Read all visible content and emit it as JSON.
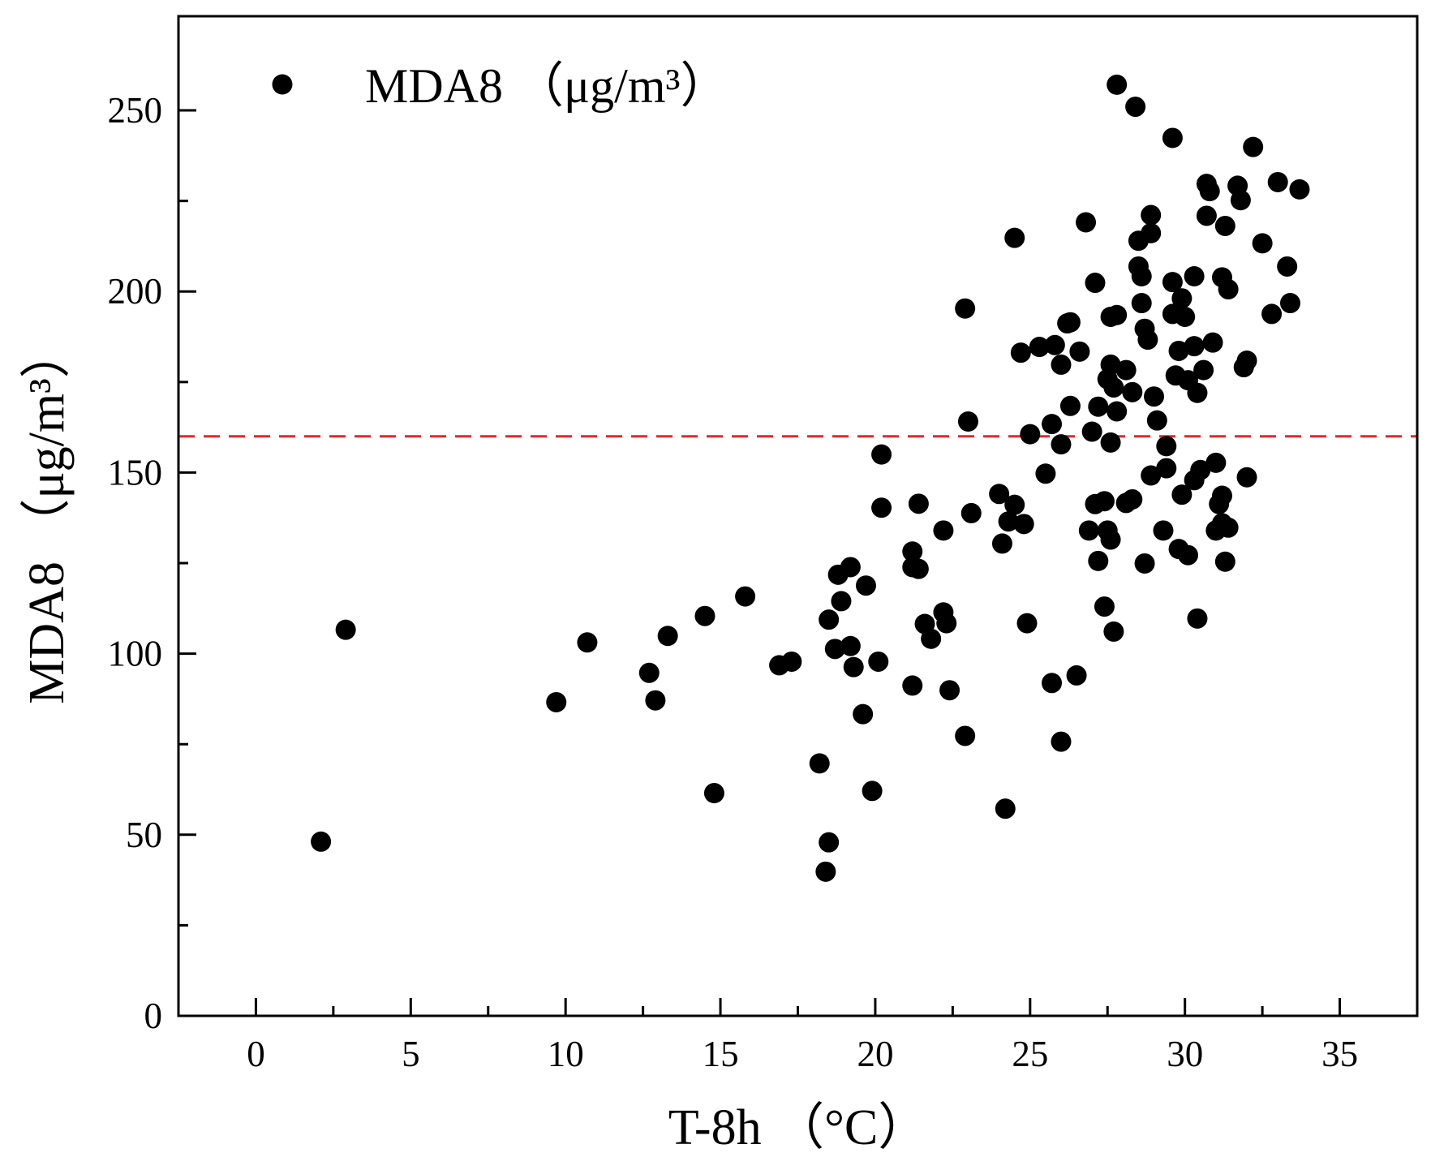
{
  "chart_data": {
    "type": "scatter",
    "x_label": "T-8h （°C）",
    "y_label": "MDA8 （μg/m³）",
    "xlim": [
      -2.5,
      37.5
    ],
    "ylim": [
      0,
      276
    ],
    "xticks": [
      0,
      5,
      10,
      15,
      20,
      25,
      30,
      35
    ],
    "yticks": [
      0,
      50,
      100,
      150,
      200,
      250
    ],
    "grid": false,
    "legend": "upper left",
    "hline": {
      "value": 160,
      "color": "#e8262a"
    },
    "series": [
      {
        "name": "MDA8 （μg/m³）",
        "color": "#000000",
        "x": [
          2.1,
          2.9,
          9.7,
          10.7,
          12.7,
          12.9,
          13.3,
          14.5,
          14.8,
          15.8,
          16.9,
          17.3,
          18.2,
          18.4,
          18.5,
          18.5,
          18.7,
          18.8,
          18.9,
          19.2,
          19.2,
          19.3,
          19.6,
          19.7,
          19.9,
          20.1,
          20.2,
          20.2,
          21.2,
          21.2,
          21.2,
          21.4,
          21.4,
          21.6,
          21.8,
          22.2,
          22.2,
          22.3,
          22.4,
          22.9,
          22.9,
          23.0,
          23.1,
          24.0,
          24.1,
          24.2,
          24.3,
          24.5,
          24.5,
          24.7,
          24.8,
          24.9,
          25.0,
          25.3,
          25.5,
          25.7,
          25.7,
          25.8,
          26.0,
          26.0,
          26.0,
          26.2,
          26.3,
          26.3,
          26.5,
          26.6,
          26.8,
          26.9,
          27.0,
          27.1,
          27.1,
          27.2,
          27.2,
          27.4,
          27.4,
          27.5,
          27.5,
          27.6,
          27.6,
          27.6,
          27.6,
          27.7,
          27.7,
          27.8,
          27.8,
          27.8,
          28.1,
          28.1,
          28.3,
          28.3,
          28.4,
          28.5,
          28.5,
          28.6,
          28.6,
          28.7,
          28.7,
          28.8,
          28.9,
          28.9,
          28.9,
          29.0,
          29.1,
          29.3,
          29.4,
          29.4,
          29.6,
          29.6,
          29.6,
          29.7,
          29.8,
          29.8,
          29.9,
          29.9,
          30.0,
          30.1,
          30.1,
          30.3,
          30.3,
          30.3,
          30.4,
          30.4,
          30.5,
          30.6,
          30.7,
          30.7,
          30.8,
          30.9,
          31.0,
          31.0,
          31.1,
          31.2,
          31.2,
          31.2,
          31.3,
          31.3,
          31.4,
          31.4,
          31.7,
          31.8,
          31.9,
          32.0,
          32.0,
          32.2,
          32.5,
          32.8,
          33.0,
          33.3,
          33.4,
          33.7
        ],
        "values": [
          48.1,
          106.6,
          86.6,
          103.1,
          94.7,
          87.1,
          104.9,
          110.4,
          61.5,
          115.8,
          96.8,
          97.8,
          69.7,
          39.8,
          47.9,
          109.4,
          101.3,
          121.8,
          114.5,
          123.9,
          102.1,
          96.3,
          83.3,
          118.8,
          62.1,
          97.8,
          155.0,
          140.3,
          91.2,
          128.2,
          123.9,
          123.4,
          141.4,
          108.2,
          104.1,
          111.4,
          134.0,
          108.4,
          89.9,
          77.3,
          195.3,
          164.1,
          138.8,
          144.1,
          130.4,
          57.2,
          136.5,
          141.1,
          214.8,
          183.1,
          135.8,
          108.4,
          160.6,
          184.7,
          149.7,
          163.4,
          91.9,
          185.2,
          157.8,
          179.8,
          75.7,
          191.2,
          191.5,
          168.4,
          94.0,
          183.4,
          219.1,
          134.0,
          161.3,
          141.3,
          202.4,
          168.2,
          125.6,
          142.1,
          113.0,
          134.0,
          175.8,
          158.3,
          131.5,
          193.0,
          179.8,
          106.1,
          173.5,
          257.1,
          193.5,
          166.9,
          178.3,
          141.6,
          142.6,
          172.2,
          251.0,
          214.0,
          206.9,
          196.8,
          204.2,
          124.9,
          189.7,
          186.7,
          216.1,
          221.1,
          149.2,
          171.0,
          164.4,
          134.0,
          157.3,
          151.2,
          242.4,
          202.6,
          193.8,
          176.8,
          128.9,
          183.6,
          143.9,
          198.1,
          193.0,
          175.5,
          127.2,
          184.9,
          204.2,
          147.9,
          172.0,
          109.7,
          150.7,
          178.3,
          229.7,
          220.9,
          227.7,
          185.9,
          152.7,
          134.0,
          141.3,
          203.9,
          143.6,
          136.0,
          218.1,
          125.4,
          134.8,
          200.6,
          229.2,
          225.2,
          179.1,
          148.7,
          180.9,
          239.9,
          213.3,
          193.8,
          230.2,
          206.9,
          196.8,
          228.2
        ]
      }
    ]
  }
}
